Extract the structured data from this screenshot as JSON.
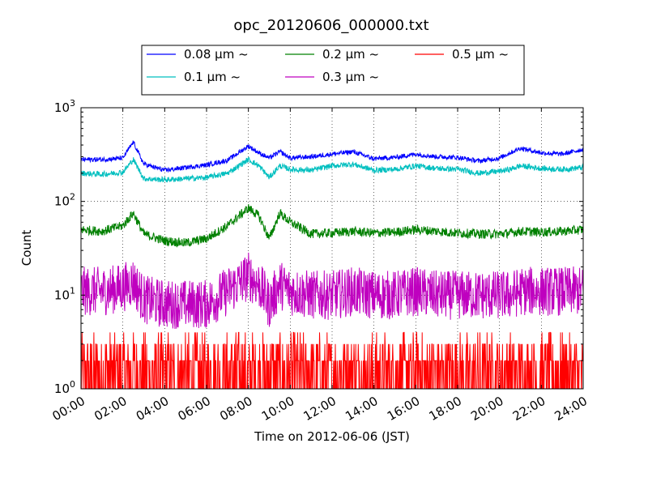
{
  "chart_data": {
    "type": "line",
    "title": "opc_20120606_000000.txt",
    "xlabel": "Time on 2012-06-06 (JST)",
    "ylabel": "Count",
    "xlim": [
      "00:00",
      "24:00"
    ],
    "ylim": [
      1,
      1000
    ],
    "yscale": "log",
    "grid": true,
    "legend_placement": "top-center, above plot, 3 columns",
    "x_ticks": [
      "00:00",
      "02:00",
      "04:00",
      "06:00",
      "08:00",
      "10:00",
      "12:00",
      "14:00",
      "16:00",
      "18:00",
      "20:00",
      "22:00",
      "24:00"
    ],
    "y_ticks": [
      {
        "value": 1,
        "base": "10",
        "exp": "0"
      },
      {
        "value": 10,
        "base": "10",
        "exp": "1"
      },
      {
        "value": 100,
        "base": "10",
        "exp": "2"
      },
      {
        "value": 1000,
        "base": "10",
        "exp": "3"
      }
    ],
    "series": [
      {
        "name": "0.08 μm ~",
        "color": "#0000ff",
        "x": [
          "00:00",
          "01:00",
          "02:00",
          "02:30",
          "03:00",
          "04:00",
          "05:00",
          "06:00",
          "07:00",
          "08:00",
          "08:30",
          "09:00",
          "09:30",
          "10:00",
          "11:00",
          "12:00",
          "13:00",
          "14:00",
          "15:00",
          "16:00",
          "17:00",
          "18:00",
          "19:00",
          "20:00",
          "20:30",
          "21:00",
          "22:00",
          "23:00",
          "24:00"
        ],
        "values": [
          280,
          280,
          290,
          430,
          250,
          215,
          230,
          245,
          275,
          390,
          330,
          290,
          340,
          290,
          300,
          320,
          340,
          285,
          295,
          320,
          300,
          295,
          270,
          290,
          330,
          370,
          330,
          320,
          360
        ]
      },
      {
        "name": "0.1 μm ~",
        "color": "#00bfbf",
        "x": [
          "00:00",
          "01:00",
          "02:00",
          "02:30",
          "03:00",
          "04:00",
          "05:00",
          "06:00",
          "07:00",
          "08:00",
          "08:30",
          "09:00",
          "09:30",
          "10:00",
          "11:00",
          "12:00",
          "13:00",
          "14:00",
          "15:00",
          "16:00",
          "17:00",
          "18:00",
          "19:00",
          "20:00",
          "20:30",
          "21:00",
          "22:00",
          "23:00",
          "24:00"
        ],
        "values": [
          200,
          195,
          205,
          280,
          175,
          170,
          175,
          180,
          200,
          280,
          240,
          180,
          240,
          220,
          215,
          240,
          250,
          215,
          220,
          240,
          225,
          220,
          200,
          210,
          220,
          240,
          225,
          220,
          230
        ]
      },
      {
        "name": "0.2 μm ~",
        "color": "#008000",
        "x": [
          "00:00",
          "01:00",
          "02:00",
          "02:30",
          "03:00",
          "04:00",
          "05:00",
          "06:00",
          "07:00",
          "08:00",
          "08:30",
          "09:00",
          "09:30",
          "10:00",
          "11:00",
          "12:00",
          "13:00",
          "14:00",
          "15:00",
          "16:00",
          "17:00",
          "18:00",
          "19:00",
          "20:00",
          "20:30",
          "21:00",
          "22:00",
          "23:00",
          "24:00"
        ],
        "values": [
          50,
          48,
          55,
          75,
          45,
          38,
          36,
          40,
          55,
          85,
          70,
          40,
          75,
          60,
          45,
          46,
          48,
          46,
          47,
          50,
          48,
          46,
          45,
          45,
          46,
          48,
          47,
          48,
          50
        ]
      },
      {
        "name": "0.3 μm ~",
        "color": "#bf00bf",
        "x": [
          "00:00",
          "01:00",
          "02:00",
          "02:30",
          "03:00",
          "04:00",
          "05:00",
          "06:00",
          "07:00",
          "08:00",
          "08:30",
          "09:00",
          "09:30",
          "10:00",
          "11:00",
          "12:00",
          "13:00",
          "14:00",
          "15:00",
          "16:00",
          "17:00",
          "18:00",
          "19:00",
          "20:00",
          "20:30",
          "21:00",
          "22:00",
          "23:00",
          "24:00"
        ],
        "values": [
          11,
          11,
          12,
          14,
          9,
          8,
          8,
          8,
          11,
          16,
          13,
          8,
          13,
          11,
          10,
          10,
          11,
          10,
          10,
          11,
          10,
          10,
          10,
          10,
          10,
          11,
          11,
          11,
          11
        ]
      },
      {
        "name": "0.5 μm ~",
        "color": "#ff0000",
        "x": [
          "00:00",
          "02:00",
          "04:00",
          "06:00",
          "08:00",
          "10:00",
          "12:00",
          "14:00",
          "16:00",
          "18:00",
          "20:00",
          "22:00",
          "24:00"
        ],
        "values": [
          1.5,
          1.5,
          1.5,
          1.5,
          1.5,
          1.5,
          1.5,
          1.5,
          1.5,
          1.5,
          1.5,
          1.5,
          1.5
        ]
      }
    ]
  }
}
